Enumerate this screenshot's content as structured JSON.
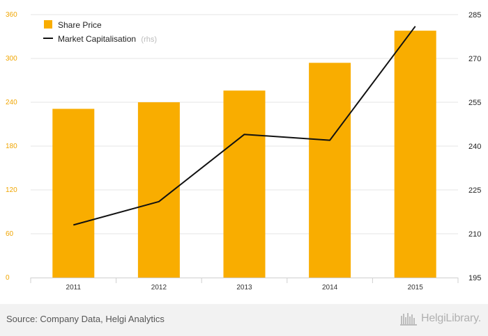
{
  "chart_data": {
    "type": "bar",
    "categories": [
      "2011",
      "2012",
      "2013",
      "2014",
      "2015"
    ],
    "series": [
      {
        "name": "Share Price",
        "type": "bar",
        "axis": "left",
        "color": "#f9ad00",
        "values": [
          231,
          240,
          256,
          294,
          338
        ]
      },
      {
        "name": "Market Capitalisation",
        "name_suffix": "(rhs)",
        "type": "line",
        "axis": "right",
        "color": "#111111",
        "values": [
          213,
          221,
          244,
          242,
          281
        ]
      }
    ],
    "y_left": {
      "ylim": [
        0,
        360
      ],
      "ticks": [
        "0",
        "60",
        "120",
        "180",
        "240",
        "300",
        "360"
      ],
      "color": "#f0a500"
    },
    "y_right": {
      "ylim": [
        195,
        285
      ],
      "ticks": [
        "195",
        "210",
        "225",
        "240",
        "255",
        "270",
        "285"
      ],
      "color": "#222222"
    },
    "grid": true,
    "legend": "top-left",
    "title": "",
    "xlabel": "",
    "ylabel": ""
  },
  "footer": {
    "source": "Source: Company Data, Helgi Analytics",
    "brand": "HelgiLibrary."
  },
  "brand_icon": "library-bookshelf-icon"
}
